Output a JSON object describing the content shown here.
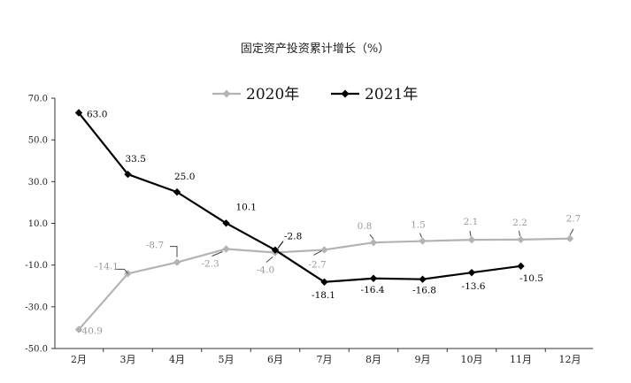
{
  "chart_data": {
    "type": "line",
    "title": "固定资产投资累计增长（%）",
    "categories": [
      "2月",
      "3月",
      "4月",
      "5月",
      "6月",
      "7月",
      "8月",
      "9月",
      "10月",
      "11月",
      "12月"
    ],
    "ylim": [
      -50,
      70
    ],
    "yticks": [
      "70.0",
      "50.0",
      "30.0",
      "10.0",
      "-10.0",
      "-30.0",
      "-50.0"
    ],
    "legend_position": "top",
    "series": [
      {
        "name": "2020年",
        "color": "#b3b3b3",
        "values": [
          -40.9,
          -14.1,
          -8.7,
          -2.3,
          -4.0,
          -2.7,
          0.8,
          1.5,
          2.1,
          2.2,
          2.7
        ],
        "labels": [
          "-40.9",
          "-14.1",
          "-8.7",
          "-2.3",
          "-4.0",
          "-2.7",
          "0.8",
          "1.5",
          "2.1",
          "2.2",
          "2.7"
        ]
      },
      {
        "name": "2021年",
        "color": "#000000",
        "values": [
          63.0,
          33.5,
          25.0,
          10.1,
          -2.8,
          -18.1,
          -16.4,
          -16.8,
          -13.6,
          -10.5,
          null
        ],
        "labels": [
          "63.0",
          "33.5",
          "25.0",
          "10.1",
          "-2.8",
          "-18.1",
          "-16.4",
          "-16.8",
          "-13.6",
          "-10.5",
          ""
        ]
      }
    ]
  }
}
